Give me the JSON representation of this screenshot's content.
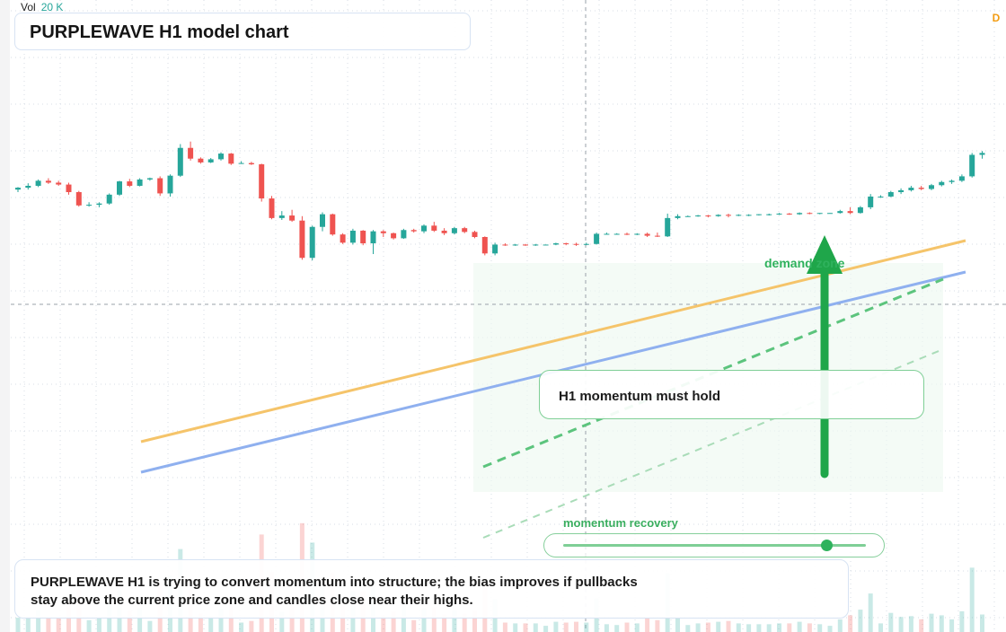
{
  "title": "PURPLEWAVE H1 model chart",
  "volume": {
    "label": "Vol",
    "value": "20 K"
  },
  "interval_badge": "D",
  "callout": {
    "text": "H1 momentum must hold"
  },
  "zone_label": "demand zone",
  "recovery": {
    "label": "momentum recovery",
    "level": 0.87
  },
  "summary": "PURPLEWAVE H1 is trying to convert momentum into structure; the bias improves if pullbacks stay above the current price zone and candles close near their highs.",
  "colors": {
    "up": "#26a69a",
    "down": "#ef5350",
    "accent_green": "#1fa64a",
    "trend_orange": "#f5c46a",
    "trend_blue": "#8fb0ef",
    "grid": "#d7dde5"
  },
  "chart_data": {
    "type": "candlestick",
    "title": "PURPLEWAVE H1 model chart",
    "ylim": [
      0,
      100
    ],
    "bar_count": 96,
    "ohlc": [
      [
        70,
        70.4,
        69.6,
        70.3
      ],
      [
        70.3,
        71,
        70,
        70.6
      ],
      [
        70.6,
        71.6,
        70.4,
        71.4
      ],
      [
        71.4,
        71.8,
        70.9,
        71.1
      ],
      [
        71.1,
        71.4,
        70.6,
        70.8
      ],
      [
        70.8,
        71.1,
        69.2,
        69.6
      ],
      [
        69.6,
        69.8,
        67.3,
        67.5
      ],
      [
        67.5,
        68,
        67.3,
        67.6
      ],
      [
        67.6,
        68,
        67.2,
        67.8
      ],
      [
        67.8,
        69.4,
        67.6,
        69.2
      ],
      [
        69.2,
        71.4,
        69,
        71.3
      ],
      [
        71.3,
        71.7,
        70.4,
        70.6
      ],
      [
        70.6,
        71.8,
        70.5,
        71.6
      ],
      [
        71.6,
        71.9,
        71.4,
        71.8
      ],
      [
        71.8,
        72.1,
        69,
        69.4
      ],
      [
        69.4,
        72.4,
        68.9,
        72.2
      ],
      [
        72.2,
        77.2,
        72,
        76.6
      ],
      [
        76.6,
        77.6,
        74.6,
        74.9
      ],
      [
        74.9,
        75.1,
        74.1,
        74.3
      ],
      [
        74.3,
        75,
        74.2,
        74.8
      ],
      [
        74.8,
        75.9,
        74.6,
        75.7
      ],
      [
        75.7,
        75.8,
        73.9,
        74.1
      ],
      [
        74.1,
        74.5,
        74.1,
        74.2
      ],
      [
        74.2,
        74.4,
        73.9,
        74
      ],
      [
        74,
        74.1,
        68.1,
        68.6
      ],
      [
        68.6,
        69,
        65.3,
        65.5
      ],
      [
        65.5,
        66.6,
        65.2,
        65.9
      ],
      [
        65.9,
        66.8,
        64.9,
        65.1
      ],
      [
        65.1,
        65.8,
        58.9,
        59.2
      ],
      [
        59.2,
        64.3,
        58.8,
        64.1
      ],
      [
        64.1,
        66.4,
        63.4,
        66.1
      ],
      [
        66.1,
        66.2,
        62.7,
        62.9
      ],
      [
        62.9,
        63.1,
        61.4,
        61.6
      ],
      [
        61.6,
        63.8,
        61.3,
        63.5
      ],
      [
        63.5,
        63.6,
        61.2,
        61.5
      ],
      [
        61.5,
        63.6,
        59.8,
        63.4
      ],
      [
        63.4,
        63.6,
        62.5,
        63.1
      ],
      [
        63.1,
        63.2,
        62.1,
        62.3
      ],
      [
        62.3,
        63.8,
        62.2,
        63.6
      ],
      [
        63.6,
        63.8,
        63.2,
        63.4
      ],
      [
        63.4,
        64.5,
        63.1,
        64.3
      ],
      [
        64.3,
        64.9,
        63.3,
        63.5
      ],
      [
        63.5,
        63.9,
        62.8,
        63.1
      ],
      [
        63.1,
        64.1,
        62.9,
        63.9
      ],
      [
        63.9,
        64.1,
        63.1,
        63.3
      ],
      [
        63.3,
        63.5,
        62.3,
        62.5
      ],
      [
        62.5,
        62.6,
        59.6,
        59.9
      ],
      [
        59.9,
        61.6,
        59.6,
        61.3
      ],
      [
        61.3,
        61.5,
        61.1,
        61.2
      ],
      [
        61.2,
        61.4,
        61.1,
        61.3
      ],
      [
        61.3,
        61.4,
        61.1,
        61.2
      ],
      [
        61.2,
        61.4,
        61.1,
        61.3
      ],
      [
        61.3,
        61.3,
        61.2,
        61.3
      ],
      [
        61.3,
        61.6,
        61.2,
        61.5
      ],
      [
        61.5,
        61.6,
        61.2,
        61.4
      ],
      [
        61.4,
        61.6,
        61.1,
        61.3
      ],
      [
        61.3,
        61.6,
        61.2,
        61.4
      ],
      [
        61.4,
        63.2,
        61.3,
        63
      ],
      [
        63,
        63.2,
        62.9,
        63
      ],
      [
        63,
        63.1,
        62.9,
        63
      ],
      [
        63,
        63.2,
        62.8,
        62.9
      ],
      [
        62.9,
        63.1,
        62.8,
        63
      ],
      [
        63,
        63.2,
        62.5,
        62.7
      ],
      [
        62.7,
        63.2,
        62.5,
        62.6
      ],
      [
        62.6,
        66.2,
        62.5,
        65.5
      ],
      [
        65.5,
        66.1,
        65.3,
        65.8
      ],
      [
        65.8,
        65.9,
        65.7,
        65.8
      ],
      [
        65.8,
        66,
        65.7,
        65.9
      ],
      [
        65.9,
        66,
        65.6,
        65.8
      ],
      [
        65.8,
        66.1,
        65.7,
        66
      ],
      [
        66,
        66.2,
        65.6,
        65.9
      ],
      [
        65.9,
        66.1,
        65.8,
        66
      ],
      [
        66,
        66.1,
        65.8,
        66
      ],
      [
        66,
        66.1,
        65.9,
        66.1
      ],
      [
        66.1,
        66.2,
        65.9,
        66.1
      ],
      [
        66.1,
        66.3,
        66,
        66.2
      ],
      [
        66.2,
        66.3,
        66,
        66.1
      ],
      [
        66.1,
        66.4,
        66,
        66.3
      ],
      [
        66.3,
        66.4,
        66.1,
        66.2
      ],
      [
        66.2,
        66.3,
        66.1,
        66.3
      ],
      [
        66.3,
        66.3,
        66.2,
        66.3
      ],
      [
        66.3,
        66.8,
        66.2,
        66.6
      ],
      [
        66.6,
        67.2,
        66.1,
        66.3
      ],
      [
        66.3,
        67.4,
        66.2,
        67.2
      ],
      [
        67.2,
        69.3,
        66.9,
        68.9
      ],
      [
        68.9,
        69.1,
        68.7,
        68.9
      ],
      [
        68.9,
        69.8,
        68.8,
        69.6
      ],
      [
        69.6,
        70.2,
        69.3,
        69.9
      ],
      [
        69.9,
        70.6,
        69.7,
        70.3
      ],
      [
        70.3,
        70.6,
        69.9,
        70.1
      ],
      [
        70.1,
        70.9,
        69.9,
        70.7
      ],
      [
        70.7,
        71.4,
        70.5,
        71.2
      ],
      [
        71.2,
        71.6,
        70.9,
        71.4
      ],
      [
        71.4,
        72.4,
        71.2,
        72.1
      ],
      [
        72.1,
        75.8,
        71.9,
        75.5
      ],
      [
        75.5,
        76.1,
        74.9,
        75.8
      ]
    ]
  }
}
